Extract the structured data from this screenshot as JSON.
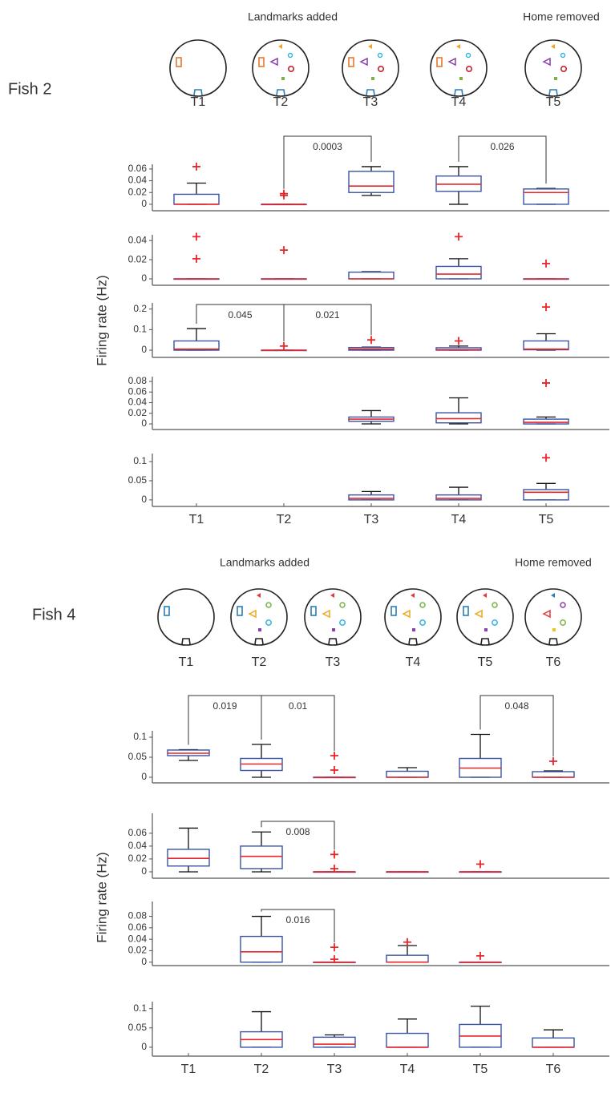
{
  "figure": [
    {
      "label": "Fish 2",
      "notes": [
        "Landmarks added",
        "Home removed"
      ],
      "arena_labels": [
        "T1",
        "T2",
        "T3",
        "T4",
        "T5"
      ],
      "arena_label_colors": [
        "#444444",
        "#e5168b",
        "#444444",
        "#444444",
        "#e5168b"
      ],
      "ylabel": "Firing rate (Hz)"
    },
    {
      "label": "Fish 4",
      "notes": [
        "Landmarks added",
        "Home removed"
      ],
      "arena_labels": [
        "T1",
        "T2",
        "T3",
        "T4",
        "T5",
        "T6"
      ],
      "arena_label_colors": [
        "#444444",
        "#e5168b",
        "#444444",
        "#444444",
        "#444444",
        "#e5168b"
      ],
      "ylabel": "Firing rate (Hz)"
    }
  ],
  "chart_data": [
    {
      "type": "box",
      "box_color": "#3a53a4",
      "median_color": "#e8262a",
      "outlier_color": "#e8262a",
      "ylim": [
        -0.011,
        0.068
      ],
      "yticks": [
        0,
        0.02,
        0.04,
        0.06
      ],
      "boxes": [
        {
          "whisker_low": 0,
          "q1": 0,
          "median": 0,
          "q3": 0.017,
          "whisker_high": 0.036,
          "outliers": [
            0.064
          ]
        },
        {
          "whisker_low": 0,
          "q1": 0,
          "median": 0,
          "q3": 0,
          "whisker_high": 0,
          "outliers": [
            0.015,
            0.018
          ]
        },
        {
          "whisker_low": 0.015,
          "q1": 0.02,
          "median": 0.031,
          "q3": 0.056,
          "whisker_high": 0.064,
          "outliers": []
        },
        {
          "whisker_low": 0,
          "q1": 0.022,
          "median": 0.034,
          "q3": 0.048,
          "whisker_high": 0.064,
          "outliers": []
        },
        {
          "whisker_low": 0,
          "q1": 0,
          "median": 0.02,
          "q3": 0.026,
          "whisker_high": 0.027,
          "outliers": []
        }
      ],
      "comparisons": [
        {
          "pair": [
            1,
            2
          ],
          "p": 0.0003
        },
        {
          "pair": [
            3,
            4
          ],
          "p": 0.026
        }
      ]
    },
    {
      "type": "box",
      "box_color": "#3a53a4",
      "median_color": "#e8262a",
      "outlier_color": "#e8262a",
      "ylim": [
        -0.0067,
        0.046
      ],
      "yticks": [
        0,
        0.02,
        0.04
      ],
      "boxes": [
        {
          "whisker_low": 0,
          "q1": 0,
          "median": 0,
          "q3": 0,
          "whisker_high": 0,
          "outliers": [
            0.021,
            0.044
          ]
        },
        {
          "whisker_low": 0,
          "q1": 0,
          "median": 0,
          "q3": 0,
          "whisker_high": 0,
          "outliers": [
            0.03
          ]
        },
        {
          "whisker_low": 0,
          "q1": 0,
          "median": 0,
          "q3": 0.007,
          "whisker_high": 0.0075,
          "outliers": []
        },
        {
          "whisker_low": 0,
          "q1": 0,
          "median": 0.005,
          "q3": 0.013,
          "whisker_high": 0.021,
          "outliers": [
            0.044
          ]
        },
        {
          "whisker_low": 0,
          "q1": 0,
          "median": 0,
          "q3": 0,
          "whisker_high": 0,
          "outliers": [
            0.016
          ]
        }
      ],
      "comparisons": []
    },
    {
      "type": "box",
      "box_color": "#3a53a4",
      "median_color": "#e8262a",
      "outlier_color": "#e8262a",
      "ylim": [
        -0.035,
        0.23
      ],
      "yticks": [
        0,
        0.1,
        0.2
      ],
      "boxes": [
        {
          "whisker_low": 0,
          "q1": 0,
          "median": 0.005,
          "q3": 0.045,
          "whisker_high": 0.105,
          "outliers": []
        },
        {
          "whisker_low": 0,
          "q1": 0,
          "median": 0,
          "q3": 0,
          "whisker_high": 0,
          "outliers": [
            0.02
          ]
        },
        {
          "whisker_low": 0,
          "q1": 0,
          "median": 0.005,
          "q3": 0.013,
          "whisker_high": 0.015,
          "outliers": [
            0.05
          ]
        },
        {
          "whisker_low": 0,
          "q1": 0,
          "median": 0.003,
          "q3": 0.012,
          "whisker_high": 0.02,
          "outliers": [
            0.045
          ]
        },
        {
          "whisker_low": 0,
          "q1": 0.002,
          "median": 0.005,
          "q3": 0.045,
          "whisker_high": 0.08,
          "outliers": [
            0.21
          ]
        }
      ],
      "comparisons": [
        {
          "pair": [
            0,
            1
          ],
          "p": 0.045
        },
        {
          "pair": [
            1,
            2
          ],
          "p": 0.021
        }
      ]
    },
    {
      "type": "box",
      "box_color": "#3a53a4",
      "median_color": "#e8262a",
      "outlier_color": "#e8262a",
      "ylim": [
        -0.0105,
        0.089
      ],
      "yticks": [
        0,
        0.02,
        0.04,
        0.06,
        0.08
      ],
      "boxes": [
        null,
        null,
        {
          "whisker_low": 0,
          "q1": 0.005,
          "median": 0.009,
          "q3": 0.013,
          "whisker_high": 0.025,
          "outliers": []
        },
        {
          "whisker_low": 0,
          "q1": 0.002,
          "median": 0.01,
          "q3": 0.021,
          "whisker_high": 0.049,
          "outliers": []
        },
        {
          "whisker_low": 0,
          "q1": 0,
          "median": 0.003,
          "q3": 0.009,
          "whisker_high": 0.013,
          "outliers": [
            0.077
          ]
        }
      ],
      "comparisons": []
    },
    {
      "type": "box",
      "box_color": "#3a53a4",
      "median_color": "#e8262a",
      "outlier_color": "#e8262a",
      "ylim": [
        -0.017,
        0.121
      ],
      "yticks": [
        0,
        0.05,
        0.1
      ],
      "categories": [
        "T1",
        "T2",
        "T3",
        "T4",
        "T5"
      ],
      "category_colors": [
        "#444444",
        "#e5168b",
        "#444444",
        "#444444",
        "#e5168b"
      ],
      "boxes": [
        null,
        null,
        {
          "whisker_low": 0,
          "q1": 0,
          "median": 0.004,
          "q3": 0.013,
          "whisker_high": 0.022,
          "outliers": []
        },
        {
          "whisker_low": 0,
          "q1": 0,
          "median": 0.004,
          "q3": 0.013,
          "whisker_high": 0.033,
          "outliers": []
        },
        {
          "whisker_low": 0,
          "q1": 0,
          "median": 0.02,
          "q3": 0.027,
          "whisker_high": 0.043,
          "outliers": [
            0.11
          ]
        }
      ],
      "comparisons": []
    },
    {
      "type": "box",
      "box_color": "#3a53a4",
      "median_color": "#e8262a",
      "outlier_color": "#e8262a",
      "ylim": [
        -0.014,
        0.116
      ],
      "yticks": [
        0,
        0.05,
        0.1
      ],
      "boxes": [
        {
          "whisker_low": 0.042,
          "q1": 0.054,
          "median": 0.06,
          "q3": 0.068,
          "whisker_high": 0.069,
          "outliers": []
        },
        {
          "whisker_low": 0,
          "q1": 0.017,
          "median": 0.033,
          "q3": 0.047,
          "whisker_high": 0.082,
          "outliers": []
        },
        {
          "whisker_low": 0,
          "q1": 0,
          "median": 0,
          "q3": 0,
          "whisker_high": 0,
          "outliers": [
            0.018,
            0.054
          ]
        },
        {
          "whisker_low": 0,
          "q1": 0,
          "median": 0,
          "q3": 0.015,
          "whisker_high": 0.024,
          "outliers": []
        },
        {
          "whisker_low": 0,
          "q1": 0,
          "median": 0.023,
          "q3": 0.047,
          "whisker_high": 0.107,
          "outliers": []
        },
        {
          "whisker_low": 0,
          "q1": 0,
          "median": 0,
          "q3": 0.014,
          "whisker_high": 0.016,
          "outliers": [
            0.04
          ]
        }
      ],
      "comparisons": [
        {
          "pair": [
            0,
            1
          ],
          "p": 0.019
        },
        {
          "pair": [
            1,
            2
          ],
          "p": 0.01
        },
        {
          "pair": [
            4,
            5
          ],
          "p": 0.048
        }
      ]
    },
    {
      "type": "box",
      "box_color": "#3a53a4",
      "median_color": "#e8262a",
      "outlier_color": "#e8262a",
      "ylim": [
        -0.01,
        0.091
      ],
      "yticks": [
        0,
        0.02,
        0.04,
        0.06
      ],
      "boxes": [
        {
          "whisker_low": 0,
          "q1": 0.009,
          "median": 0.021,
          "q3": 0.035,
          "whisker_high": 0.068,
          "outliers": []
        },
        {
          "whisker_low": 0,
          "q1": 0.005,
          "median": 0.024,
          "q3": 0.04,
          "whisker_high": 0.062,
          "outliers": []
        },
        {
          "whisker_low": 0,
          "q1": 0,
          "median": 0,
          "q3": 0,
          "whisker_high": 0,
          "outliers": [
            0.005,
            0.027
          ]
        },
        {
          "whisker_low": 0,
          "q1": 0,
          "median": 0,
          "q3": 0,
          "whisker_high": 0,
          "outliers": []
        },
        {
          "whisker_low": 0,
          "q1": 0,
          "median": 0,
          "q3": 0,
          "whisker_high": 0,
          "outliers": [
            0.012
          ]
        },
        null
      ],
      "comparisons": [
        {
          "pair": [
            1,
            2
          ],
          "p": 0.008
        }
      ]
    },
    {
      "type": "box",
      "box_color": "#3a53a4",
      "median_color": "#e8262a",
      "outlier_color": "#e8262a",
      "ylim": [
        -0.006,
        0.106
      ],
      "yticks": [
        0,
        0.02,
        0.04,
        0.06,
        0.08
      ],
      "boxes": [
        null,
        {
          "whisker_low": 0,
          "q1": 0,
          "median": 0.018,
          "q3": 0.045,
          "whisker_high": 0.08,
          "outliers": []
        },
        {
          "whisker_low": 0,
          "q1": 0,
          "median": 0,
          "q3": 0,
          "whisker_high": 0,
          "outliers": [
            0.005,
            0.026
          ]
        },
        {
          "whisker_low": 0,
          "q1": 0,
          "median": 0,
          "q3": 0.012,
          "whisker_high": 0.029,
          "outliers": [
            0.035
          ]
        },
        {
          "whisker_low": 0,
          "q1": 0,
          "median": 0,
          "q3": 0,
          "whisker_high": 0,
          "outliers": [
            0.011
          ]
        },
        null
      ],
      "comparisons": [
        {
          "pair": [
            1,
            2
          ],
          "p": 0.016
        }
      ]
    },
    {
      "type": "box",
      "box_color": "#3a53a4",
      "median_color": "#e8262a",
      "outlier_color": "#e8262a",
      "ylim": [
        -0.023,
        0.118
      ],
      "yticks": [
        0,
        0.05,
        0.1
      ],
      "categories": [
        "T1",
        "T2",
        "T3",
        "T4",
        "T5",
        "T6"
      ],
      "category_colors": [
        "#444444",
        "#e5168b",
        "#444444",
        "#444444",
        "#444444",
        "#e5168b"
      ],
      "boxes": [
        null,
        {
          "whisker_low": 0,
          "q1": 0,
          "median": 0.02,
          "q3": 0.04,
          "whisker_high": 0.092,
          "outliers": []
        },
        {
          "whisker_low": 0,
          "q1": 0,
          "median": 0.008,
          "q3": 0.026,
          "whisker_high": 0.032,
          "outliers": []
        },
        {
          "whisker_low": 0,
          "q1": 0,
          "median": 0,
          "q3": 0.036,
          "whisker_high": 0.073,
          "outliers": []
        },
        {
          "whisker_low": 0,
          "q1": 0,
          "median": 0.029,
          "q3": 0.059,
          "whisker_high": 0.106,
          "outliers": []
        },
        {
          "whisker_low": 0,
          "q1": 0,
          "median": 0,
          "q3": 0.024,
          "whisker_high": 0.045,
          "outliers": []
        }
      ],
      "comparisons": []
    }
  ]
}
